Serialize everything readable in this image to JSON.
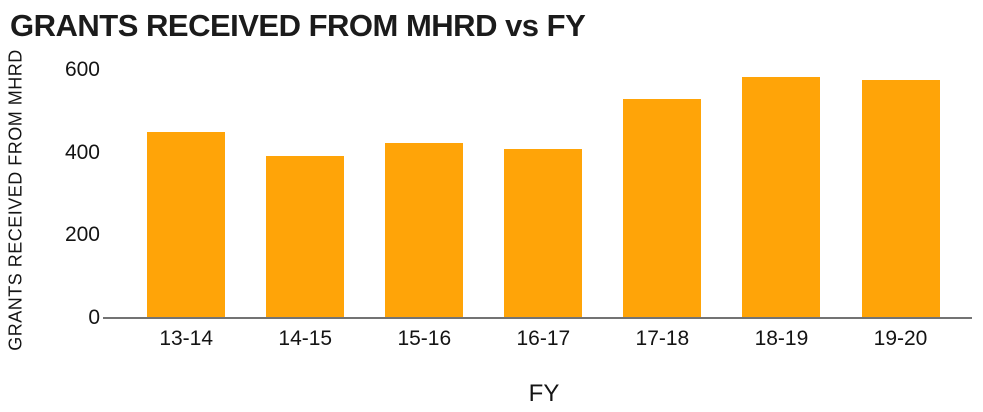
{
  "page": {
    "background": "#FFFFFF"
  },
  "chart_data": {
    "type": "bar",
    "title": "GRANTS RECEIVED FROM MHRD vs FY",
    "xlabel": "FY",
    "ylabel": "GRANTS RECEIVED FROM MHRD",
    "categories": [
      "13-14",
      "14-15",
      "15-16",
      "16-17",
      "17-18",
      "18-19",
      "19-20"
    ],
    "values": [
      449,
      392,
      423,
      410,
      529,
      583,
      575
    ],
    "ylim": [
      0,
      600
    ],
    "yticks": [
      0,
      200,
      400,
      600
    ],
    "grid": false,
    "legend": false,
    "bar_color": "#FFA408",
    "axis_line_color": "#737373",
    "text_color": "#141414",
    "title_color": "#1B1B1B"
  }
}
